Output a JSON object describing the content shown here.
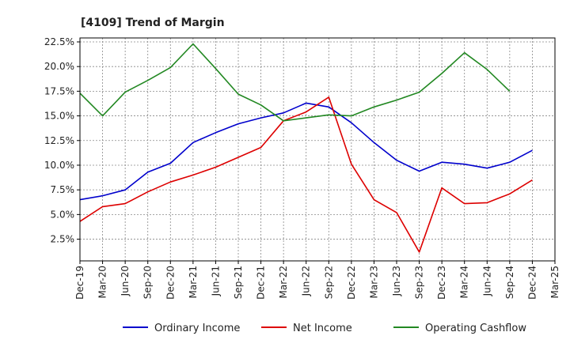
{
  "chart_data": {
    "type": "line",
    "title": "[4109]  Trend of Margin",
    "xlabel": "",
    "ylabel": "",
    "categories": [
      "Dec-19",
      "Mar-20",
      "Jun-20",
      "Sep-20",
      "Dec-20",
      "Mar-21",
      "Jun-21",
      "Sep-21",
      "Dec-21",
      "Mar-22",
      "Jun-22",
      "Sep-22",
      "Dec-22",
      "Mar-23",
      "Jun-23",
      "Sep-23",
      "Dec-23",
      "Mar-24",
      "Jun-24",
      "Sep-24",
      "Dec-24",
      "Mar-25"
    ],
    "y_ticks": [
      "2.5%",
      "5.0%",
      "7.5%",
      "10.0%",
      "12.5%",
      "15.0%",
      "17.5%",
      "20.0%",
      "22.5%"
    ],
    "y_tick_values": [
      2.5,
      5.0,
      7.5,
      10.0,
      12.5,
      15.0,
      17.5,
      20.0,
      22.5
    ],
    "ylim": [
      0.3,
      22.9
    ],
    "grid": true,
    "legend_position": "bottom",
    "series": [
      {
        "name": "Ordinary Income",
        "color": "#0000cc",
        "values": [
          6.5,
          6.9,
          7.5,
          9.3,
          10.2,
          12.3,
          13.3,
          14.2,
          14.8,
          15.3,
          16.3,
          15.9,
          14.3,
          12.3,
          10.5,
          9.4,
          10.3,
          10.1,
          9.7,
          10.3,
          11.5,
          null
        ]
      },
      {
        "name": "Net Income",
        "color": "#dd0000",
        "values": [
          4.3,
          5.8,
          6.1,
          7.3,
          8.3,
          9.0,
          9.8,
          10.8,
          11.8,
          14.5,
          15.4,
          16.9,
          10.1,
          6.5,
          5.2,
          1.2,
          7.7,
          6.1,
          6.2,
          7.1,
          8.5,
          null
        ]
      },
      {
        "name": "Operating Cashflow",
        "color": "#228822",
        "values": [
          17.3,
          15.0,
          17.4,
          18.6,
          19.9,
          22.3,
          19.8,
          17.2,
          16.1,
          14.5,
          14.8,
          15.1,
          15.0,
          15.9,
          16.6,
          17.4,
          19.3,
          21.4,
          19.7,
          17.5,
          null,
          null
        ]
      }
    ]
  }
}
